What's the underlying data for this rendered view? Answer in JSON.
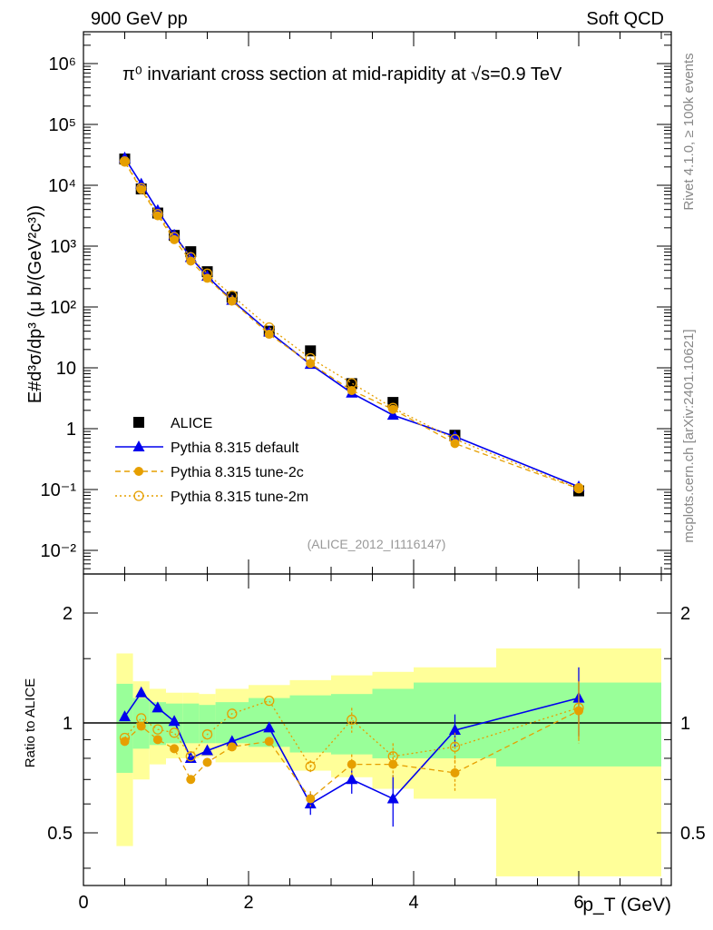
{
  "header": {
    "left": "900 GeV pp",
    "right": "Soft QCD"
  },
  "side": {
    "rivet": "Rivet 4.1.0, ≥ 100k events",
    "mcplots": "mcplots.cern.ch [arXiv:2401.10621]"
  },
  "chart_data": [
    {
      "type": "scatter",
      "title": "π⁰ invariant cross section at mid-rapidity at √s=0.9 TeV",
      "ylabel": "E#d³σ/dp³ (μ b/(GeV²c³))",
      "analysis": "(ALICE_2012_I1116147)",
      "yscale": "log",
      "ylim": [
        0.004,
        3000000
      ],
      "xlim": [
        0,
        7.2
      ],
      "yticks": [
        "10⁻²",
        "10⁻¹",
        "1",
        "10",
        "10²",
        "10³",
        "10⁴",
        "10⁵",
        "10⁶"
      ],
      "ytick_values": [
        0.01,
        0.1,
        1,
        10,
        100,
        1000,
        10000,
        100000,
        1000000
      ],
      "legend_position": "bottom-left",
      "x": [
        0.5,
        0.7,
        0.9,
        1.1,
        1.3,
        1.5,
        1.8,
        2.25,
        2.75,
        3.25,
        3.75,
        4.5,
        6.0
      ],
      "series": [
        {
          "name": "ALICE",
          "color": "#000000",
          "marker": "square",
          "values": [
            27000,
            8700,
            3500,
            1500,
            810,
            380,
            145,
            40,
            19,
            5.5,
            2.7,
            0.78,
            0.095
          ]
        },
        {
          "name": "Pythia 8.315 default",
          "color": "#0000ee",
          "marker": "triangle",
          "line": "solid",
          "values": [
            28100,
            10500,
            3850,
            1515,
            650,
            320,
            129,
            38.8,
            11.4,
            3.85,
            1.67,
            0.745,
            0.111
          ]
        },
        {
          "name": "Pythia 8.315 tune-2c",
          "color": "#e69f00",
          "marker": "circle",
          "line": "dashed",
          "values": [
            24000,
            8500,
            3150,
            1275,
            567,
            296,
            125,
            35.6,
            11.8,
            4.24,
            2.08,
            0.57,
            0.103
          ]
        },
        {
          "name": "Pythia 8.315 tune-2m",
          "color": "#e69f00",
          "marker": "open-circle",
          "line": "dotted",
          "values": [
            24600,
            8960,
            3360,
            1410,
            656,
            353,
            154,
            46,
            14.4,
            5.6,
            2.19,
            0.67,
            0.105
          ]
        }
      ]
    },
    {
      "type": "line",
      "ylabel": "Ratio to ALICE",
      "xlabel": "p_T (GeV)",
      "yscale": "log",
      "ylim": [
        0.36,
        2.56
      ],
      "xlim": [
        0,
        7.2
      ],
      "xticks": [
        "0",
        "2",
        "4",
        "6"
      ],
      "xtick_values": [
        0,
        2,
        4,
        6
      ],
      "yticks": [
        "0.5",
        "1",
        "2"
      ],
      "ytick_values": [
        0.5,
        1,
        2
      ],
      "bin_edges": [
        0.4,
        0.6,
        0.8,
        1.0,
        1.2,
        1.4,
        1.6,
        2.0,
        2.5,
        3.0,
        3.5,
        4.0,
        5.0,
        7.0
      ],
      "band_yellow_up": [
        1.55,
        1.3,
        1.24,
        1.21,
        1.21,
        1.2,
        1.24,
        1.27,
        1.31,
        1.35,
        1.38,
        1.42,
        1.6
      ],
      "band_yellow_down": [
        0.46,
        0.7,
        0.77,
        0.8,
        0.8,
        0.81,
        0.78,
        0.78,
        0.74,
        0.71,
        0.66,
        0.62,
        0.38
      ],
      "band_green_up": [
        1.28,
        1.17,
        1.14,
        1.13,
        1.13,
        1.12,
        1.14,
        1.17,
        1.19,
        1.2,
        1.24,
        1.29,
        1.29
      ],
      "band_green_down": [
        0.73,
        0.85,
        0.87,
        0.88,
        0.88,
        0.88,
        0.88,
        0.86,
        0.83,
        0.82,
        0.8,
        0.8,
        0.76
      ],
      "x": [
        0.5,
        0.7,
        0.9,
        1.1,
        1.3,
        1.5,
        1.8,
        2.25,
        2.75,
        3.25,
        3.75,
        4.5,
        6.0
      ],
      "series": [
        {
          "name": "Pythia 8.315 default",
          "color": "#0000ee",
          "marker": "triangle",
          "line": "solid",
          "values": [
            1.04,
            1.21,
            1.1,
            1.01,
            0.8,
            0.84,
            0.89,
            0.97,
            0.6,
            0.7,
            0.62,
            0.955,
            1.17
          ],
          "err": [
            0.01,
            0.01,
            0.01,
            0.01,
            0.01,
            0.01,
            0.01,
            0.01,
            0.04,
            0.06,
            0.1,
            0.1,
            0.25
          ]
        },
        {
          "name": "Pythia 8.315 tune-2c",
          "color": "#e69f00",
          "marker": "circle",
          "line": "dashed",
          "values": [
            0.89,
            0.98,
            0.9,
            0.85,
            0.7,
            0.78,
            0.86,
            0.89,
            0.62,
            0.77,
            0.77,
            0.73,
            1.08
          ],
          "err": [
            0.01,
            0.01,
            0.01,
            0.01,
            0.01,
            0.01,
            0.01,
            0.02,
            0.03,
            0.05,
            0.06,
            0.08,
            0.2
          ]
        },
        {
          "name": "Pythia 8.315 tune-2m",
          "color": "#e69f00",
          "marker": "open-circle",
          "line": "dotted",
          "values": [
            0.91,
            1.03,
            0.96,
            0.94,
            0.81,
            0.93,
            1.06,
            1.15,
            0.76,
            1.02,
            0.81,
            0.86,
            1.1
          ],
          "err": [
            0.01,
            0.01,
            0.01,
            0.01,
            0.01,
            0.01,
            0.01,
            0.02,
            0.03,
            0.08,
            0.07,
            0.08,
            0.2
          ]
        }
      ]
    }
  ]
}
